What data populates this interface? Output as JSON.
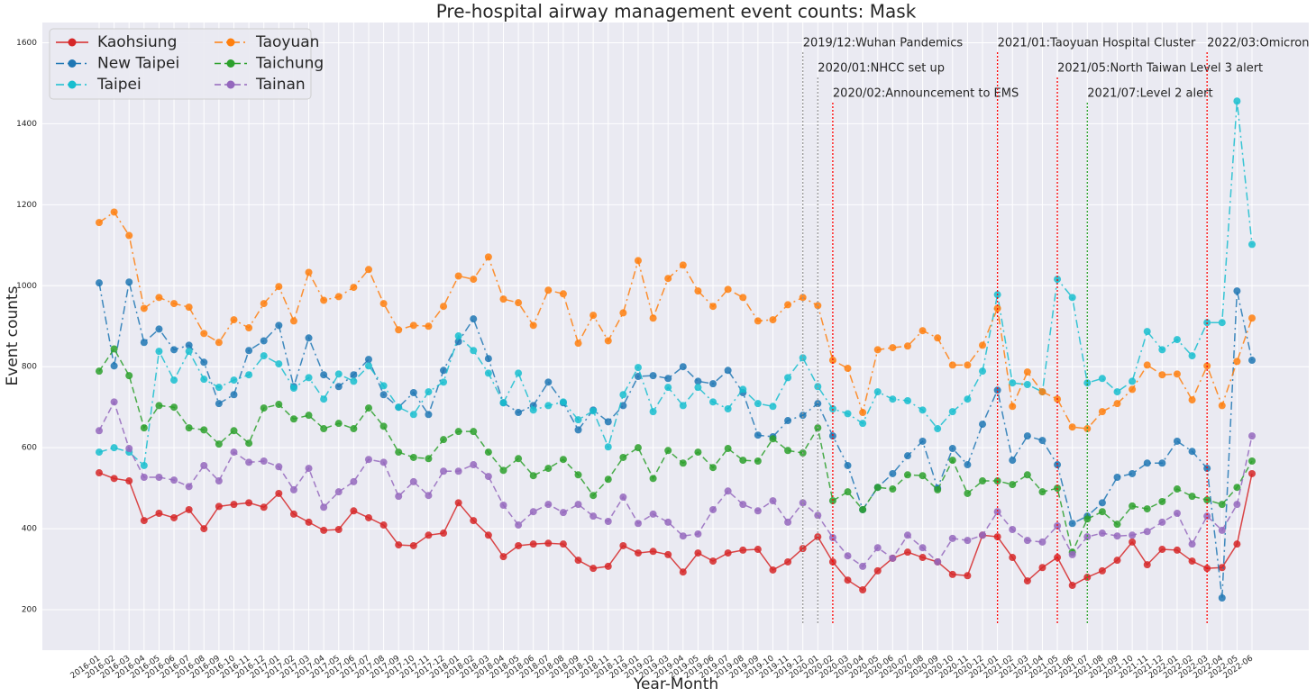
{
  "chart_data": {
    "type": "line",
    "title": "Pre-hospital airway management event counts: Mask",
    "x_label": "Year-Month",
    "y_label": "Event counts",
    "categories": [
      "2016-01",
      "2016-02",
      "2016-03",
      "2016-04",
      "2016-05",
      "2016-06",
      "2016-07",
      "2016-08",
      "2016-09",
      "2016-10",
      "2016-11",
      "2016-12",
      "2017-01",
      "2017-02",
      "2017-03",
      "2017-04",
      "2017-05",
      "2017-06",
      "2017-07",
      "2017-08",
      "2017-09",
      "2017-10",
      "2017-11",
      "2017-12",
      "2018-01",
      "2018-02",
      "2018-03",
      "2018-04",
      "2018-05",
      "2018-06",
      "2018-07",
      "2018-08",
      "2018-09",
      "2018-10",
      "2018-11",
      "2018-12",
      "2019-01",
      "2019-02",
      "2019-03",
      "2019-04",
      "2019-05",
      "2019-06",
      "2019-07",
      "2019-08",
      "2019-09",
      "2019-10",
      "2019-11",
      "2019-12",
      "2020-01",
      "2020-02",
      "2020-03",
      "2020-04",
      "2020-05",
      "2020-06",
      "2020-07",
      "2020-08",
      "2020-09",
      "2020-10",
      "2020-11",
      "2020-12",
      "2021-01",
      "2021-02",
      "2021-03",
      "2021-04",
      "2021-05",
      "2021-06",
      "2021-07",
      "2021-08",
      "2021-09",
      "2021-10",
      "2021-11",
      "2021-12",
      "2022-01",
      "2022-02",
      "2022-03",
      "2022-04",
      "2022-05",
      "2022-06"
    ],
    "series": [
      {
        "name": "Kaohsiung",
        "color": "#d62728",
        "linestyle": "solid",
        "values": [
          538,
          524,
          518,
          420,
          438,
          427,
          447,
          400,
          455,
          460,
          464,
          453,
          487,
          436,
          416,
          396,
          398,
          444,
          427,
          409,
          360,
          358,
          384,
          389,
          464,
          420,
          384,
          331,
          358,
          362,
          364,
          362,
          322,
          302,
          307,
          358,
          340,
          344,
          336,
          293,
          340,
          320,
          340,
          347,
          349,
          298,
          318,
          351,
          380,
          318,
          273,
          249,
          296,
          327,
          342,
          329,
          318,
          287,
          284,
          384,
          380,
          329,
          271,
          304,
          329,
          260,
          280,
          296,
          322,
          367,
          311,
          349,
          347,
          320,
          302,
          304,
          362,
          536
        ]
      },
      {
        "name": "New Taipei",
        "color": "#1f77b4",
        "linestyle": "dashdot",
        "values": [
          1007,
          802,
          1009,
          860,
          893,
          842,
          853,
          811,
          709,
          731,
          840,
          864,
          902,
          751,
          871,
          780,
          751,
          780,
          818,
          731,
          700,
          736,
          682,
          791,
          862,
          918,
          820,
          711,
          687,
          704,
          762,
          711,
          644,
          693,
          664,
          704,
          776,
          778,
          771,
          800,
          764,
          758,
          791,
          736,
          631,
          627,
          667,
          680,
          709,
          629,
          556,
          447,
          502,
          536,
          580,
          616,
          500,
          598,
          558,
          658,
          742,
          569,
          629,
          618,
          558,
          413,
          431,
          464,
          527,
          536,
          562,
          562,
          616,
          591,
          549,
          229,
          987,
          816
        ]
      },
      {
        "name": "Taipei",
        "color": "#17becf",
        "linestyle": "dashdot",
        "values": [
          589,
          600,
          589,
          556,
          838,
          767,
          838,
          769,
          749,
          767,
          780,
          827,
          807,
          747,
          773,
          720,
          782,
          764,
          802,
          753,
          700,
          682,
          738,
          762,
          876,
          840,
          784,
          711,
          784,
          693,
          704,
          713,
          669,
          691,
          602,
          731,
          798,
          689,
          749,
          704,
          749,
          713,
          696,
          744,
          709,
          702,
          773,
          822,
          751,
          696,
          684,
          660,
          738,
          720,
          716,
          693,
          647,
          689,
          720,
          789,
          978,
          760,
          756,
          738,
          1016,
          971,
          760,
          771,
          738,
          764,
          887,
          842,
          867,
          827,
          909,
          909,
          1456,
          1102
        ]
      },
      {
        "name": "Taoyuan",
        "color": "#ff7f0e",
        "linestyle": "dashdot",
        "values": [
          1156,
          1182,
          1124,
          944,
          971,
          956,
          947,
          882,
          860,
          916,
          896,
          956,
          998,
          913,
          1033,
          964,
          973,
          996,
          1040,
          956,
          891,
          902,
          900,
          949,
          1024,
          1016,
          1071,
          967,
          958,
          902,
          989,
          980,
          858,
          927,
          864,
          933,
          1062,
          920,
          1018,
          1051,
          987,
          949,
          991,
          971,
          913,
          916,
          953,
          971,
          951,
          816,
          796,
          687,
          842,
          847,
          851,
          889,
          871,
          804,
          804,
          853,
          944,
          702,
          787,
          738,
          720,
          651,
          647,
          689,
          709,
          744,
          804,
          780,
          782,
          718,
          802,
          704,
          813,
          920
        ]
      },
      {
        "name": "Taichung",
        "color": "#2ca02c",
        "linestyle": "dashed",
        "values": [
          789,
          844,
          778,
          649,
          704,
          700,
          649,
          644,
          609,
          642,
          611,
          698,
          707,
          671,
          680,
          647,
          660,
          647,
          698,
          653,
          589,
          576,
          573,
          620,
          640,
          640,
          589,
          544,
          573,
          531,
          549,
          571,
          533,
          482,
          522,
          576,
          600,
          524,
          593,
          562,
          589,
          551,
          598,
          569,
          567,
          622,
          593,
          587,
          649,
          469,
          491,
          447,
          502,
          498,
          533,
          531,
          496,
          569,
          487,
          518,
          518,
          509,
          533,
          491,
          500,
          342,
          424,
          442,
          411,
          456,
          449,
          467,
          498,
          480,
          471,
          460,
          502,
          567
        ]
      },
      {
        "name": "Tainan",
        "color": "#9467bd",
        "linestyle": "dashed",
        "values": [
          642,
          713,
          598,
          527,
          527,
          520,
          504,
          556,
          518,
          589,
          564,
          567,
          553,
          496,
          549,
          453,
          491,
          516,
          571,
          564,
          480,
          516,
          482,
          542,
          542,
          558,
          529,
          458,
          409,
          442,
          460,
          440,
          460,
          431,
          418,
          478,
          413,
          436,
          416,
          382,
          387,
          447,
          493,
          460,
          444,
          469,
          416,
          464,
          433,
          378,
          333,
          307,
          353,
          327,
          384,
          353,
          318,
          376,
          371,
          384,
          442,
          398,
          371,
          367,
          407,
          336,
          380,
          389,
          382,
          384,
          393,
          416,
          438,
          362,
          431,
          396,
          460,
          629
        ]
      }
    ],
    "annotations": [
      {
        "text": "2019/12:Wuhan Pandemics",
        "category": "2019-12",
        "color": "#999999"
      },
      {
        "text": "2020/01:NHCC set up",
        "category": "2020-01",
        "color": "#999999"
      },
      {
        "text": "2020/02:Announcement to EMS",
        "category": "2020-02",
        "color": "#ff0000"
      },
      {
        "text": "2021/01:Taoyuan Hospital Cluster",
        "category": "2021-01",
        "color": "#ff0000"
      },
      {
        "text": "2021/05:North Taiwan Level 3 alert",
        "category": "2021-05",
        "color": "#ff0000"
      },
      {
        "text": "2021/07:Level 2 alert",
        "category": "2021-07",
        "color": "#2ca02c"
      },
      {
        "text": "2022/03:Omicron",
        "category": "2022-03",
        "color": "#ff0000"
      }
    ],
    "ylim": [
      100,
      1650
    ],
    "yticks": [
      200,
      400,
      600,
      800,
      1000,
      1200,
      1400,
      1600
    ],
    "grid": true,
    "legend": "upper left"
  }
}
